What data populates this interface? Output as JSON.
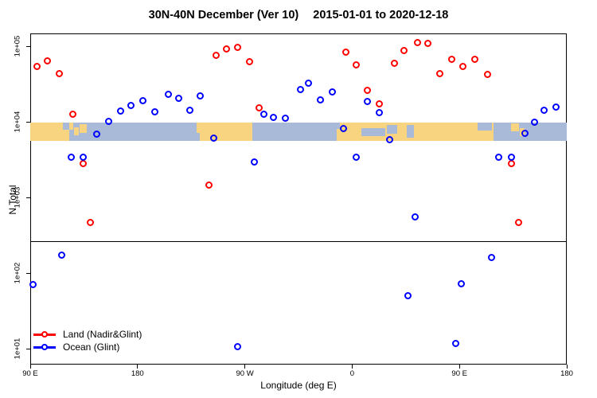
{
  "figure": {
    "title_left": "30N-40N December (Ver 10)",
    "title_right": "2015-01-01 to 2020-12-18"
  },
  "chart_data": {
    "type": "scatter",
    "title": "30N-40N December (Ver 10)   2015-01-01 to 2020-12-18",
    "xlabel": "Longitude (deg E)",
    "ylabel": "N Total",
    "marker": "open-circle",
    "legend_position": "bottom-left",
    "x_axis": {
      "label": "Longitude (deg E)",
      "range_deg": [
        90,
        540
      ],
      "ticks": [
        {
          "deg": 90,
          "label": "90 E"
        },
        {
          "deg": 180,
          "label": "180"
        },
        {
          "deg": 270,
          "label": "90 W"
        },
        {
          "deg": 360,
          "label": "0"
        },
        {
          "deg": 450,
          "label": "90 E"
        },
        {
          "deg": 540,
          "label": "180"
        }
      ]
    },
    "y_axis": {
      "label": "N Total",
      "scale": "log10",
      "ticks": [
        {
          "value": 100000,
          "label": "1e+05"
        },
        {
          "value": 10000,
          "label": "1e+04"
        },
        {
          "value": 1000,
          "label": "1e+03"
        },
        {
          "value": 100,
          "label": "1e+02"
        },
        {
          "value": 10,
          "label": "1e+01"
        }
      ]
    },
    "reference_line": {
      "value": 265,
      "color": "#000000"
    },
    "map_strip": {
      "value_top": 9800,
      "value_bottom": 5600,
      "ocean_color": "#A9BAD8",
      "land_color": "#F8D480",
      "land_segments": [
        {
          "deg": [
            90,
            122.5
          ],
          "t": 0,
          "b": 1
        },
        {
          "deg": [
            122.5,
            126
          ],
          "t": 0,
          "b": 0.4
        },
        {
          "deg": [
            127,
            131
          ],
          "t": 0.25,
          "b": 0.7
        },
        {
          "deg": [
            131.5,
            137.5
          ],
          "t": 0.1,
          "b": 0.55
        },
        {
          "deg": [
            229.5,
            276.5
          ],
          "t": 0,
          "b": 1
        },
        {
          "deg": [
            347,
            478.5
          ],
          "t": 0,
          "b": 1
        },
        {
          "deg": [
            493.5,
            500
          ],
          "t": 0.05,
          "b": 0.5
        },
        {
          "deg": [
            500.5,
            504.5
          ],
          "t": 0.3,
          "b": 0.75
        }
      ],
      "water_patches": [
        {
          "deg": [
            117.5,
            122.5
          ],
          "t": 0,
          "b": 0.4
        },
        {
          "deg": [
            229.5,
            232.5
          ],
          "t": 0.55,
          "b": 1
        },
        {
          "deg": [
            347,
            349.5
          ],
          "t": 0,
          "b": 0.35
        },
        {
          "deg": [
            368,
            388
          ],
          "t": 0.3,
          "b": 0.75
        },
        {
          "deg": [
            389,
            398
          ],
          "t": 0.15,
          "b": 0.6
        },
        {
          "deg": [
            406,
            412
          ],
          "t": 0.15,
          "b": 0.85
        },
        {
          "deg": [
            465,
            477
          ],
          "t": 0,
          "b": 0.45
        }
      ]
    },
    "series": [
      {
        "name": "Land (Nadir&Glint)",
        "color": "#FF0000",
        "points": [
          [
            96,
            53000
          ],
          [
            105,
            63000
          ],
          [
            115,
            43000
          ],
          [
            126,
            12500
          ],
          [
            135,
            2800
          ],
          [
            141,
            460
          ],
          [
            240,
            1440
          ],
          [
            246,
            75000
          ],
          [
            255,
            91000
          ],
          [
            264,
            95000
          ],
          [
            274,
            62000
          ],
          [
            282,
            15000
          ],
          [
            355,
            82000
          ],
          [
            364,
            56000
          ],
          [
            373,
            26000
          ],
          [
            383,
            17000
          ],
          [
            396,
            59000
          ],
          [
            404,
            86000
          ],
          [
            415,
            110000
          ],
          [
            424,
            108000
          ],
          [
            434,
            43000
          ],
          [
            444,
            66000
          ],
          [
            453,
            53000
          ],
          [
            463,
            66000
          ],
          [
            474,
            42000
          ],
          [
            494,
            2800
          ],
          [
            500,
            460
          ]
        ]
      },
      {
        "name": "Ocean (Glint)",
        "color": "#0000FF",
        "points": [
          [
            156,
            10000
          ],
          [
            166,
            13700
          ],
          [
            175,
            16300
          ],
          [
            185,
            19000
          ],
          [
            195,
            13300
          ],
          [
            206,
            23000
          ],
          [
            215,
            20000
          ],
          [
            224,
            14000
          ],
          [
            233,
            21700
          ],
          [
            286,
            12500
          ],
          [
            294,
            11300
          ],
          [
            304,
            11000
          ],
          [
            317,
            26400
          ],
          [
            324,
            32000
          ],
          [
            334,
            19200
          ],
          [
            344,
            24500
          ],
          [
            373,
            18300
          ],
          [
            383,
            13100
          ],
          [
            146,
            6800
          ],
          [
            125,
            3400
          ],
          [
            135,
            3400
          ],
          [
            244,
            6000
          ],
          [
            278,
            2900
          ],
          [
            353,
            8000
          ],
          [
            364,
            3400
          ],
          [
            392,
            5700
          ],
          [
            483,
            3400
          ],
          [
            494,
            3400
          ],
          [
            505,
            7000
          ],
          [
            513,
            9800
          ],
          [
            521,
            14000
          ],
          [
            531,
            15500
          ],
          [
            413,
            546
          ],
          [
            117,
            170
          ],
          [
            93,
            70
          ],
          [
            407,
            50
          ],
          [
            452,
            71
          ],
          [
            477,
            160
          ],
          [
            447,
            11.6
          ],
          [
            264,
            10.5
          ]
        ]
      }
    ]
  }
}
